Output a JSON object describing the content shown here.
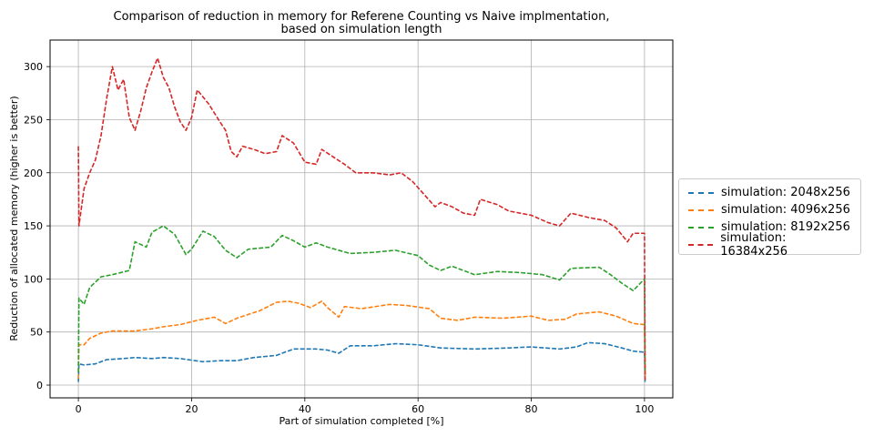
{
  "chart_data": {
    "type": "line",
    "title": "Comparison of reduction in memory for Referene Counting vs Naive implmentation,",
    "subtitle": "based on simulation length",
    "xlabel": "Part of simulation completed [%]",
    "ylabel": "Reduction of allocated memory (higher is better)",
    "xlim": [
      -5,
      105
    ],
    "ylim": [
      -12,
      325
    ],
    "xticks": [
      0,
      20,
      40,
      60,
      80,
      100
    ],
    "yticks": [
      0,
      50,
      100,
      150,
      200,
      250,
      300
    ],
    "grid": true,
    "legend_position": "right-outside",
    "series": [
      {
        "name": "simulation: 2048x256",
        "color": "#1f77b4",
        "points": [
          [
            0,
            3
          ],
          [
            0.1,
            20
          ],
          [
            1,
            19
          ],
          [
            3,
            20
          ],
          [
            5,
            24
          ],
          [
            8,
            25
          ],
          [
            10,
            26
          ],
          [
            13,
            25
          ],
          [
            15,
            26
          ],
          [
            18,
            25
          ],
          [
            22,
            22
          ],
          [
            25,
            23
          ],
          [
            28,
            23
          ],
          [
            31,
            26
          ],
          [
            35,
            28
          ],
          [
            38,
            34
          ],
          [
            42,
            34
          ],
          [
            44,
            33
          ],
          [
            46,
            30
          ],
          [
            48,
            37
          ],
          [
            52,
            37
          ],
          [
            56,
            39
          ],
          [
            60,
            38
          ],
          [
            64,
            35
          ],
          [
            70,
            34
          ],
          [
            76,
            35
          ],
          [
            80,
            36
          ],
          [
            85,
            34
          ],
          [
            88,
            36
          ],
          [
            90,
            40
          ],
          [
            93,
            39
          ],
          [
            96,
            35
          ],
          [
            98,
            32
          ],
          [
            100,
            31
          ],
          [
            100.1,
            3
          ]
        ]
      },
      {
        "name": "simulation: 4096x256",
        "color": "#ff7f0e",
        "points": [
          [
            0,
            6
          ],
          [
            0.1,
            38
          ],
          [
            1,
            38
          ],
          [
            2,
            44
          ],
          [
            4,
            49
          ],
          [
            6,
            51
          ],
          [
            10,
            51
          ],
          [
            13,
            53
          ],
          [
            15,
            55
          ],
          [
            18,
            57
          ],
          [
            21,
            61
          ],
          [
            24,
            64
          ],
          [
            26,
            58
          ],
          [
            28,
            63
          ],
          [
            32,
            70
          ],
          [
            35,
            78
          ],
          [
            37,
            79
          ],
          [
            39,
            77
          ],
          [
            41,
            73
          ],
          [
            43,
            79
          ],
          [
            44,
            73
          ],
          [
            46,
            64
          ],
          [
            47,
            74
          ],
          [
            50,
            72
          ],
          [
            55,
            76
          ],
          [
            58,
            75
          ],
          [
            62,
            72
          ],
          [
            64,
            63
          ],
          [
            67,
            61
          ],
          [
            70,
            64
          ],
          [
            75,
            63
          ],
          [
            80,
            65
          ],
          [
            83,
            61
          ],
          [
            86,
            62
          ],
          [
            88,
            67
          ],
          [
            92,
            69
          ],
          [
            95,
            65
          ],
          [
            98,
            58
          ],
          [
            100,
            57
          ],
          [
            100.1,
            5
          ]
        ]
      },
      {
        "name": "simulation: 8192x256",
        "color": "#2ca02c",
        "points": [
          [
            0,
            12
          ],
          [
            0.1,
            82
          ],
          [
            1,
            76
          ],
          [
            2,
            92
          ],
          [
            4,
            102
          ],
          [
            6,
            104
          ],
          [
            9,
            108
          ],
          [
            10,
            135
          ],
          [
            12,
            130
          ],
          [
            13,
            144
          ],
          [
            15,
            150
          ],
          [
            17,
            142
          ],
          [
            19,
            123
          ],
          [
            20,
            128
          ],
          [
            22,
            145
          ],
          [
            24,
            140
          ],
          [
            26,
            127
          ],
          [
            28,
            120
          ],
          [
            30,
            128
          ],
          [
            34,
            130
          ],
          [
            36,
            141
          ],
          [
            38,
            136
          ],
          [
            40,
            130
          ],
          [
            42,
            134
          ],
          [
            44,
            130
          ],
          [
            48,
            124
          ],
          [
            52,
            125
          ],
          [
            56,
            127
          ],
          [
            60,
            122
          ],
          [
            62,
            113
          ],
          [
            64,
            108
          ],
          [
            66,
            112
          ],
          [
            70,
            104
          ],
          [
            74,
            107
          ],
          [
            78,
            106
          ],
          [
            82,
            104
          ],
          [
            85,
            99
          ],
          [
            87,
            110
          ],
          [
            92,
            111
          ],
          [
            94,
            104
          ],
          [
            96,
            96
          ],
          [
            98,
            89
          ],
          [
            100,
            100
          ],
          [
            100.1,
            10
          ]
        ]
      },
      {
        "name": "simulation: 16384x256",
        "color": "#d62728",
        "points": [
          [
            0,
            225
          ],
          [
            0.1,
            150
          ],
          [
            1,
            185
          ],
          [
            2,
            200
          ],
          [
            3,
            212
          ],
          [
            4,
            235
          ],
          [
            5,
            270
          ],
          [
            6,
            300
          ],
          [
            7,
            278
          ],
          [
            8,
            288
          ],
          [
            9,
            252
          ],
          [
            10,
            240
          ],
          [
            11,
            258
          ],
          [
            12,
            280
          ],
          [
            13,
            295
          ],
          [
            14,
            308
          ],
          [
            15,
            290
          ],
          [
            16,
            280
          ],
          [
            17,
            262
          ],
          [
            18,
            248
          ],
          [
            19,
            240
          ],
          [
            20,
            252
          ],
          [
            21,
            278
          ],
          [
            23,
            265
          ],
          [
            25,
            248
          ],
          [
            26,
            240
          ],
          [
            27,
            220
          ],
          [
            28,
            215
          ],
          [
            29,
            225
          ],
          [
            31,
            222
          ],
          [
            33,
            218
          ],
          [
            35,
            220
          ],
          [
            36,
            235
          ],
          [
            38,
            228
          ],
          [
            40,
            210
          ],
          [
            42,
            208
          ],
          [
            43,
            222
          ],
          [
            45,
            215
          ],
          [
            47,
            208
          ],
          [
            49,
            200
          ],
          [
            52,
            200
          ],
          [
            55,
            198
          ],
          [
            57,
            200
          ],
          [
            59,
            192
          ],
          [
            61,
            180
          ],
          [
            63,
            168
          ],
          [
            64,
            172
          ],
          [
            66,
            168
          ],
          [
            68,
            162
          ],
          [
            70,
            160
          ],
          [
            71,
            175
          ],
          [
            74,
            170
          ],
          [
            76,
            164
          ],
          [
            80,
            160
          ],
          [
            83,
            153
          ],
          [
            85,
            150
          ],
          [
            87,
            162
          ],
          [
            90,
            158
          ],
          [
            93,
            155
          ],
          [
            95,
            148
          ],
          [
            97,
            135
          ],
          [
            98,
            143
          ],
          [
            100,
            143
          ],
          [
            100.1,
            5
          ]
        ]
      }
    ]
  }
}
